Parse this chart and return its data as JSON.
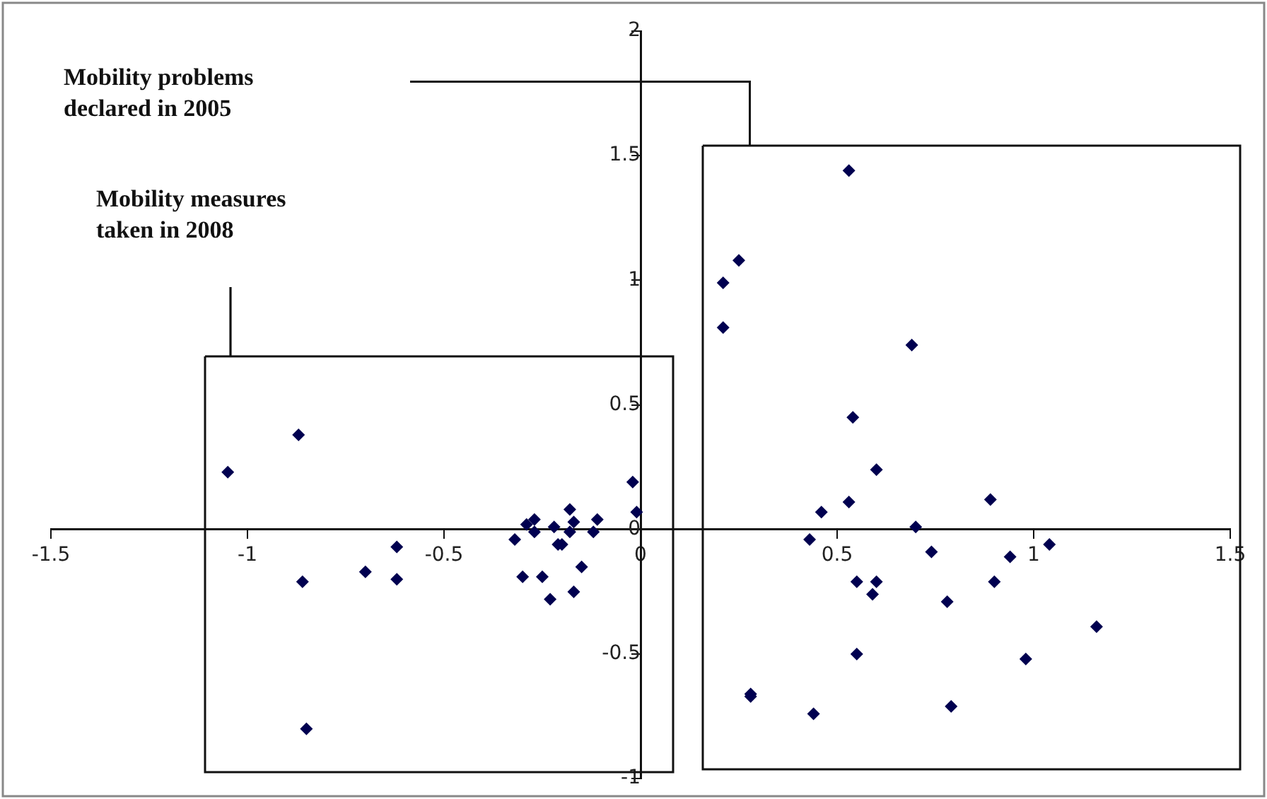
{
  "chart_data": {
    "type": "scatter",
    "x": [
      -1.05,
      -0.87,
      -0.86,
      -0.85,
      -0.7,
      -0.62,
      -0.62,
      -0.32,
      -0.3,
      -0.29,
      -0.27,
      -0.27,
      -0.25,
      -0.22,
      -0.23,
      -0.21,
      -0.2,
      -0.18,
      -0.17,
      -0.18,
      -0.17,
      -0.15,
      -0.12,
      -0.11,
      -0.02,
      -0.01,
      0.53,
      0.25,
      0.21,
      0.21,
      0.69,
      0.54,
      0.6,
      0.53,
      0.46,
      0.89,
      0.43,
      0.7,
      0.74,
      0.94,
      1.04,
      0.55,
      0.6,
      0.59,
      0.9,
      0.78,
      1.16,
      0.55,
      0.98,
      0.28,
      0.28,
      0.44,
      0.79
    ],
    "values": [
      0.23,
      0.38,
      -0.21,
      -0.8,
      -0.17,
      -0.07,
      -0.2,
      -0.04,
      -0.19,
      0.02,
      0.04,
      -0.01,
      -0.19,
      0.01,
      -0.28,
      -0.06,
      -0.06,
      0.08,
      0.03,
      -0.01,
      -0.25,
      -0.15,
      -0.01,
      0.04,
      0.19,
      0.07,
      1.44,
      1.08,
      0.99,
      0.81,
      0.74,
      0.45,
      0.24,
      0.11,
      0.07,
      0.12,
      -0.04,
      0.01,
      -0.09,
      -0.11,
      -0.06,
      -0.21,
      -0.21,
      -0.26,
      -0.21,
      -0.29,
      -0.39,
      -0.5,
      -0.52,
      -0.66,
      -0.67,
      -0.74,
      -0.71
    ],
    "color": "#000050",
    "marker": "diamond",
    "grid": false,
    "xlim": [
      -1.5,
      1.5
    ],
    "xticks": [
      -1.5,
      -1,
      -0.5,
      0,
      0.5,
      1,
      1.5
    ],
    "ylim": [
      -1,
      2
    ],
    "yticks": [
      -1,
      -0.5,
      0,
      0.5,
      1,
      1.5,
      2
    ],
    "annotations": [
      "Mobility problems declared in 2005",
      "Mobility measures taken in 2008"
    ]
  }
}
